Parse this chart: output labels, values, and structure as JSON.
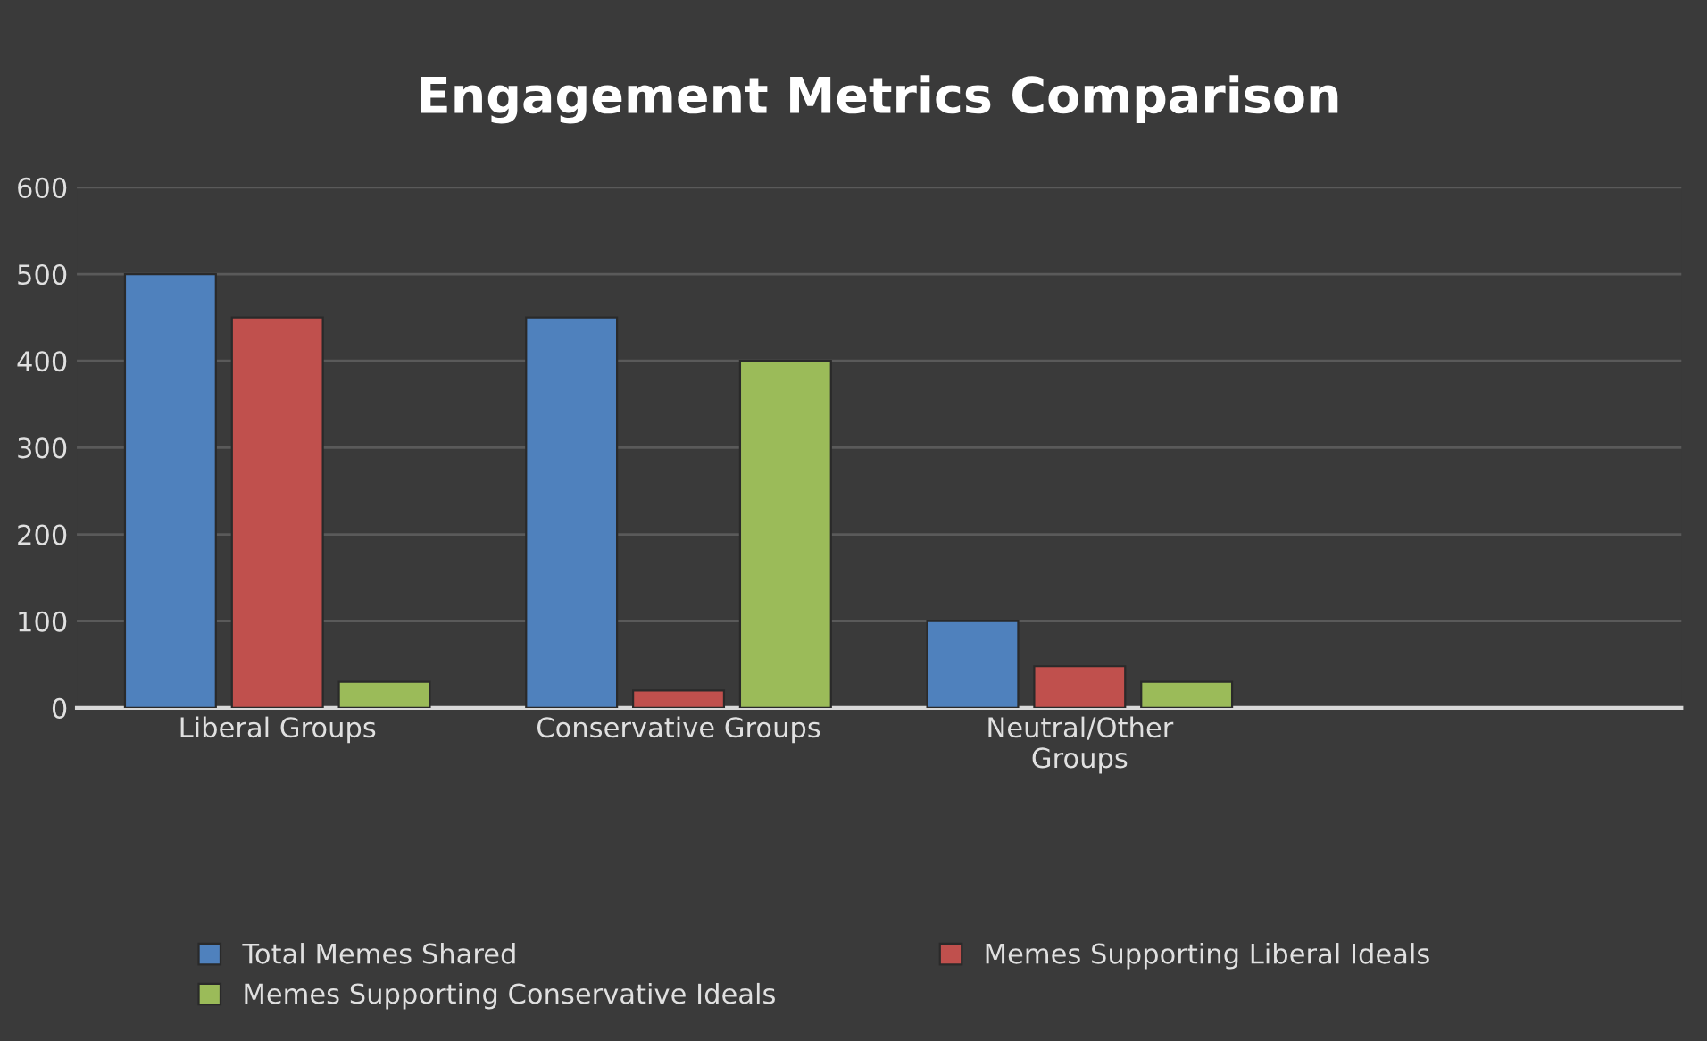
{
  "chart_data": {
    "type": "bar",
    "title": "Engagement Metrics Comparison",
    "categories": [
      "Liberal Groups",
      "Conservative Groups",
      "Neutral/Other Groups",
      null
    ],
    "series": [
      {
        "name": "Total Memes Shared",
        "color": "#4f81bd",
        "values": [
          500,
          450,
          100,
          null
        ]
      },
      {
        "name": "Memes Supporting Liberal Ideals",
        "color": "#c0504d",
        "values": [
          450,
          20,
          48,
          null
        ]
      },
      {
        "name": "Memes Supporting Conservative Ideals",
        "color": "#9bbb59",
        "values": [
          30,
          400,
          30,
          null
        ]
      }
    ],
    "ylim": [
      0,
      600
    ],
    "yticks": [
      0,
      100,
      200,
      300,
      400,
      500,
      600
    ],
    "grid": "y",
    "legend": "bottom"
  }
}
